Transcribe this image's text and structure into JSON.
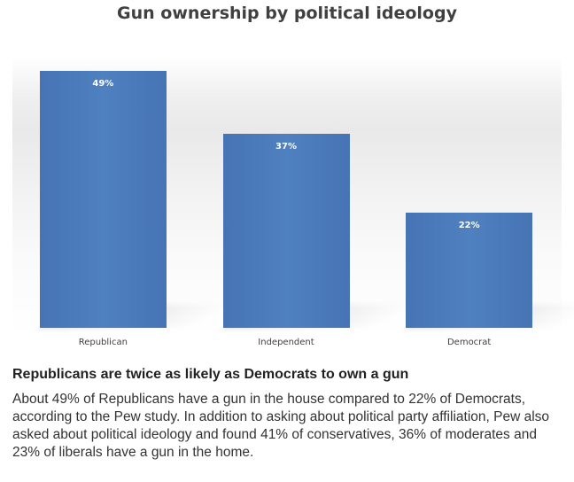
{
  "chart_data": {
    "type": "bar",
    "title": "Gun ownership by political ideology",
    "categories": [
      "Republican",
      "Independent",
      "Democrat"
    ],
    "values": [
      49,
      37,
      22
    ],
    "value_labels": [
      "49%",
      "37%",
      "22%"
    ],
    "ylim": [
      0,
      56
    ],
    "grid": false,
    "bar_color": "#4f81bd"
  },
  "article": {
    "heading": "Republicans are twice as likely as Democrats to own a gun",
    "body": "About 49% of Republicans have a gun in the house compared to 22% of Democrats, according to the Pew study. In addition to asking about political party affiliation, Pew also asked about political ideology and found 41% of conservatives, 36% of moderates and 23% of liberals have a gun in the home."
  }
}
